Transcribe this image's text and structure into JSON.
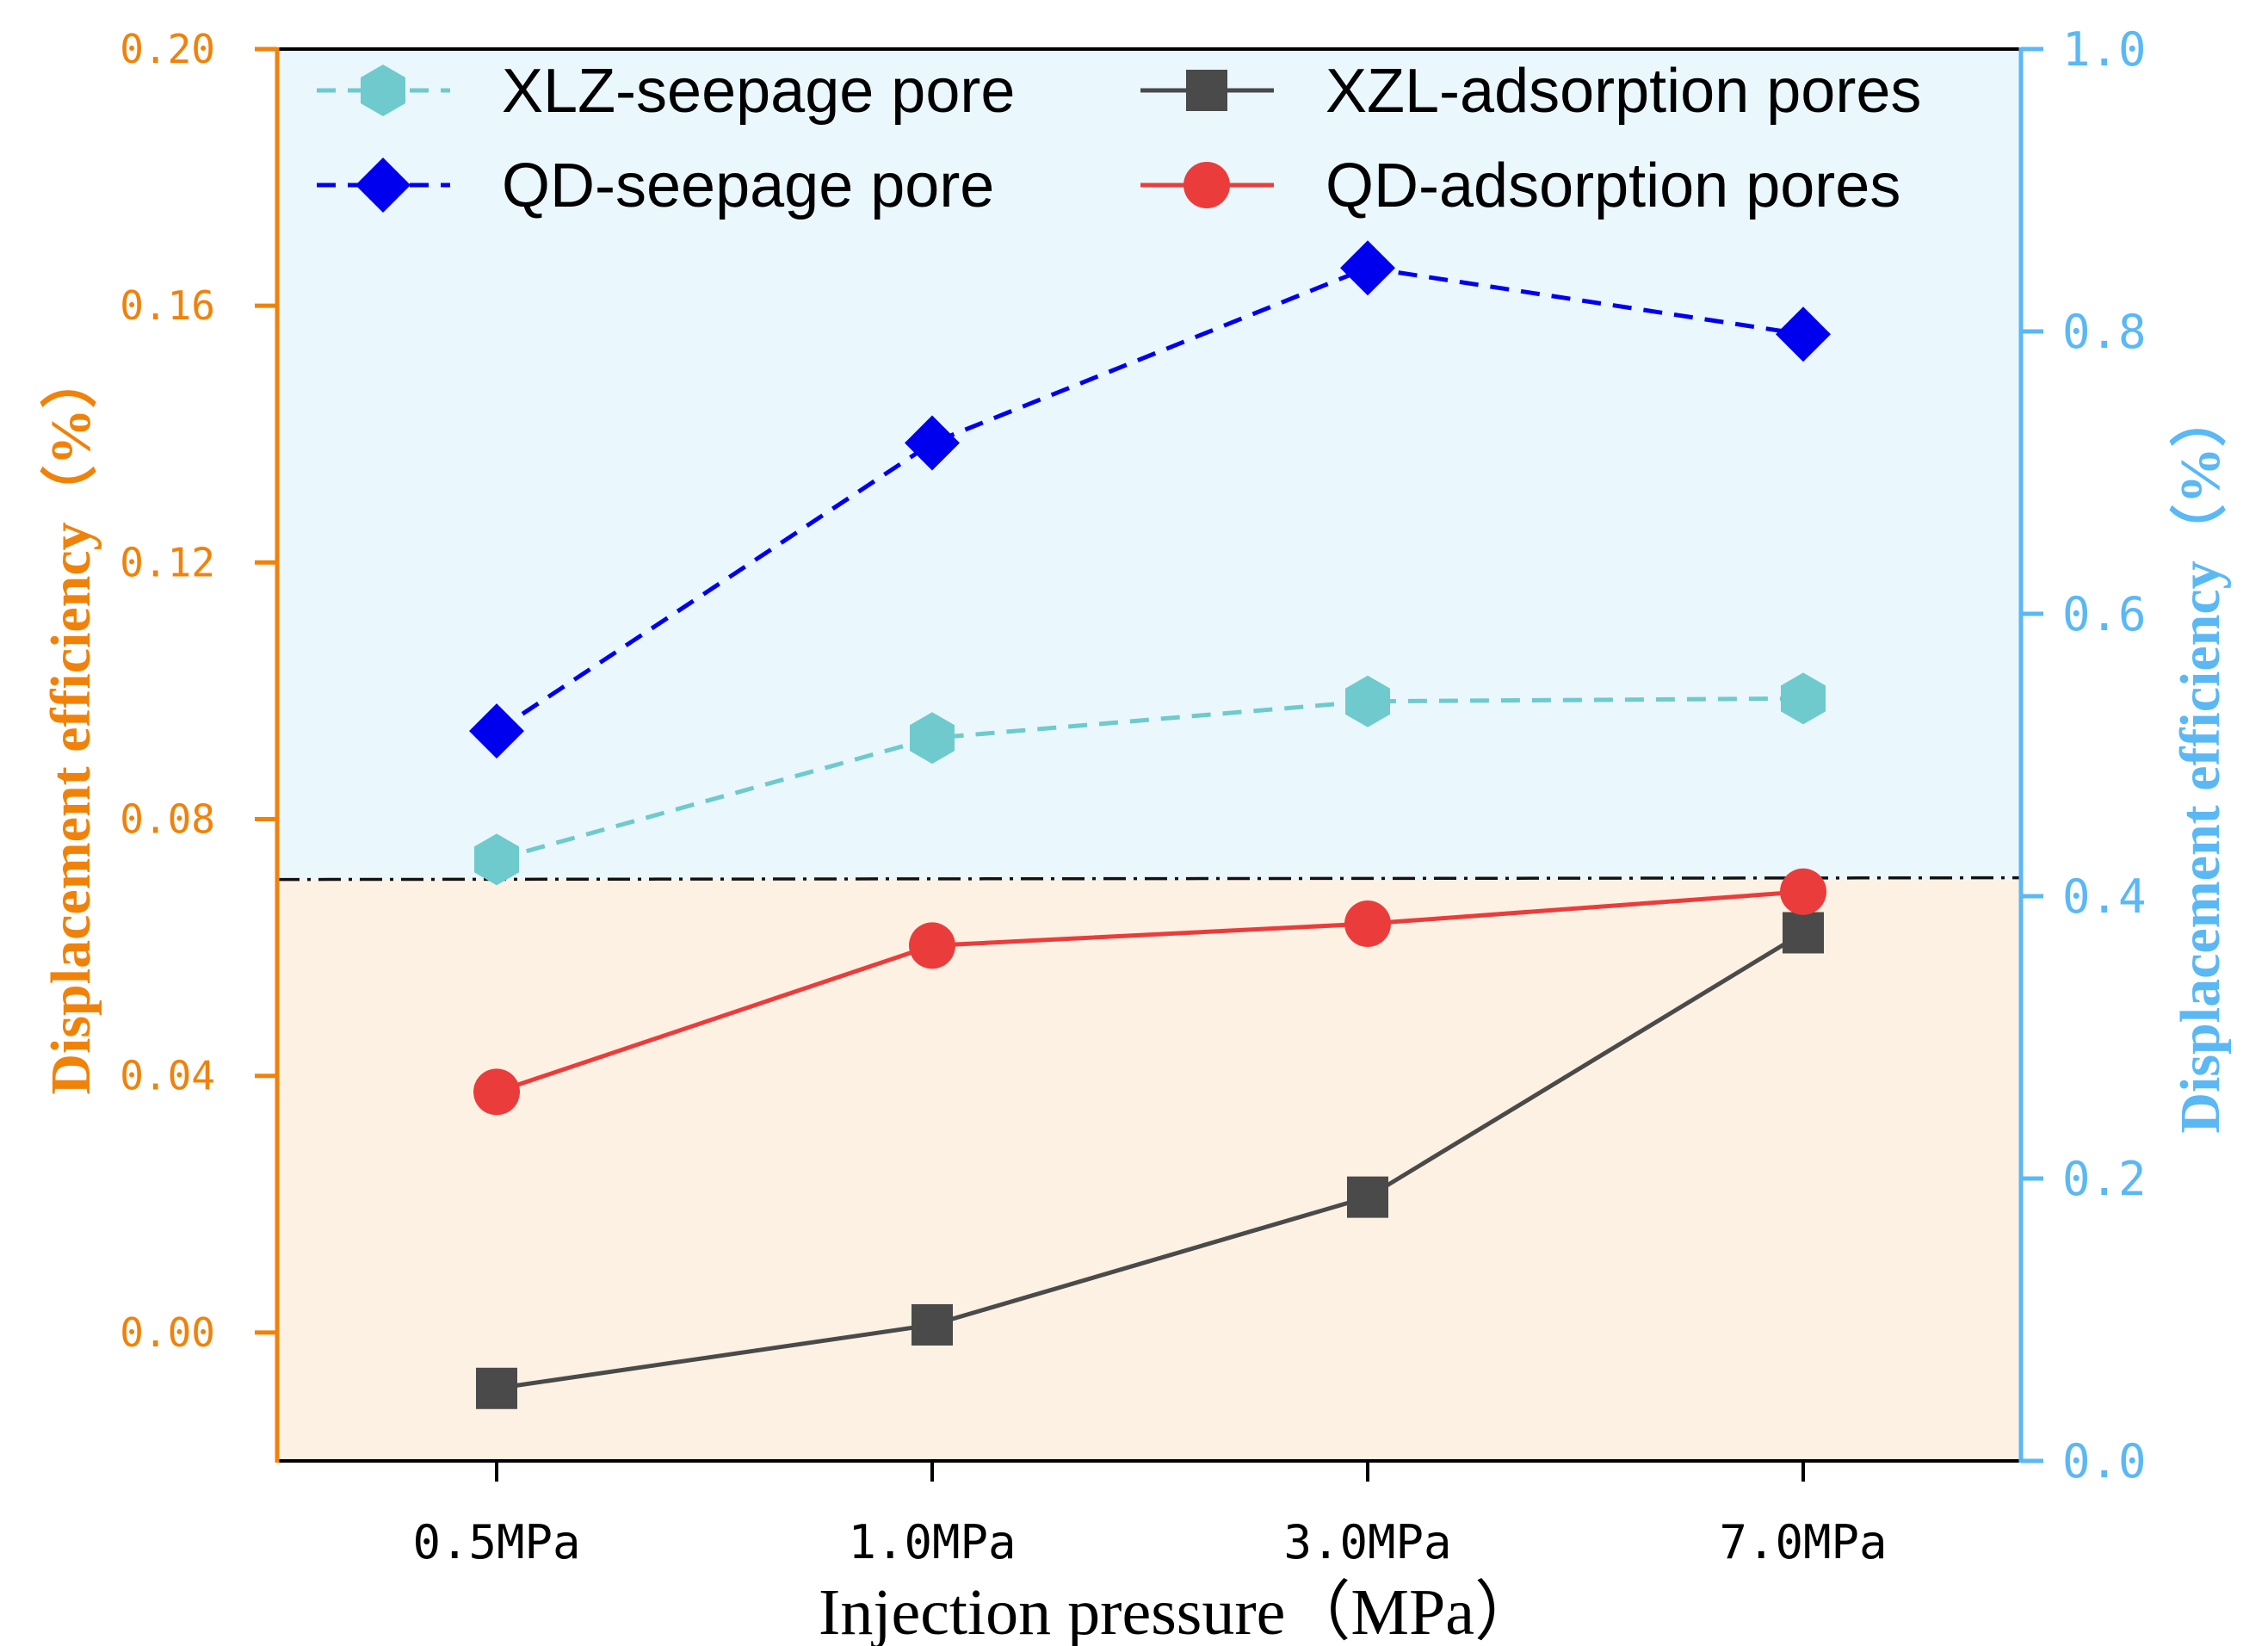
{
  "chart_data": {
    "type": "line",
    "title": "",
    "xlabel": "Injection pressure（MPa）",
    "ylabel_left": "Displacement efficiency（%）",
    "ylabel_right": "Displacement efficiency（%）",
    "categories": [
      "0.5MPa",
      "1.0MPa",
      "3.0MPa",
      "7.0MPa"
    ],
    "ylim_left": [
      -0.02,
      0.2
    ],
    "ylim_right": [
      0.0,
      1.0
    ],
    "yticks_left": [
      "0.00",
      "0.04",
      "0.08",
      "0.12",
      "0.16",
      "0.20"
    ],
    "yticks_left_values": [
      0.0,
      0.04,
      0.08,
      0.12,
      0.16,
      0.2
    ],
    "yticks_right": [
      "0.0",
      "0.2",
      "0.4",
      "0.6",
      "0.8",
      "1.0"
    ],
    "yticks_right_values": [
      0.0,
      0.2,
      0.4,
      0.6,
      0.8,
      1.0
    ],
    "left_axis_color": "#f0820a",
    "right_axis_color": "#5ab8f5",
    "divider_value_left": 0.0706,
    "region_upper_color": "#eaf7fd",
    "region_lower_color": "#fdf1e3",
    "legend_position": "top",
    "series": [
      {
        "name": "XLZ-seepage pore",
        "axis": "right",
        "values": [
          0.426,
          0.512,
          0.538,
          0.54
        ],
        "color": "#6ecacd",
        "line_style": "dashed",
        "marker": "hexagon"
      },
      {
        "name": "QD-seepage pore",
        "axis": "right",
        "values": [
          0.517,
          0.721,
          0.845,
          0.798
        ],
        "color": "#0000ee",
        "line_style": "dashed",
        "marker": "diamond"
      },
      {
        "name": "XZL-adsorption pores",
        "axis": "left",
        "values": [
          -0.0087,
          0.0012,
          0.0211,
          0.0623
        ],
        "color": "#4a4a4a",
        "line_style": "solid",
        "marker": "square"
      },
      {
        "name": "QD-adsorption pores",
        "axis": "left",
        "values": [
          0.0375,
          0.0603,
          0.0637,
          0.0687
        ],
        "color": "#eb3c3c",
        "line_style": "solid",
        "marker": "circle"
      }
    ]
  }
}
